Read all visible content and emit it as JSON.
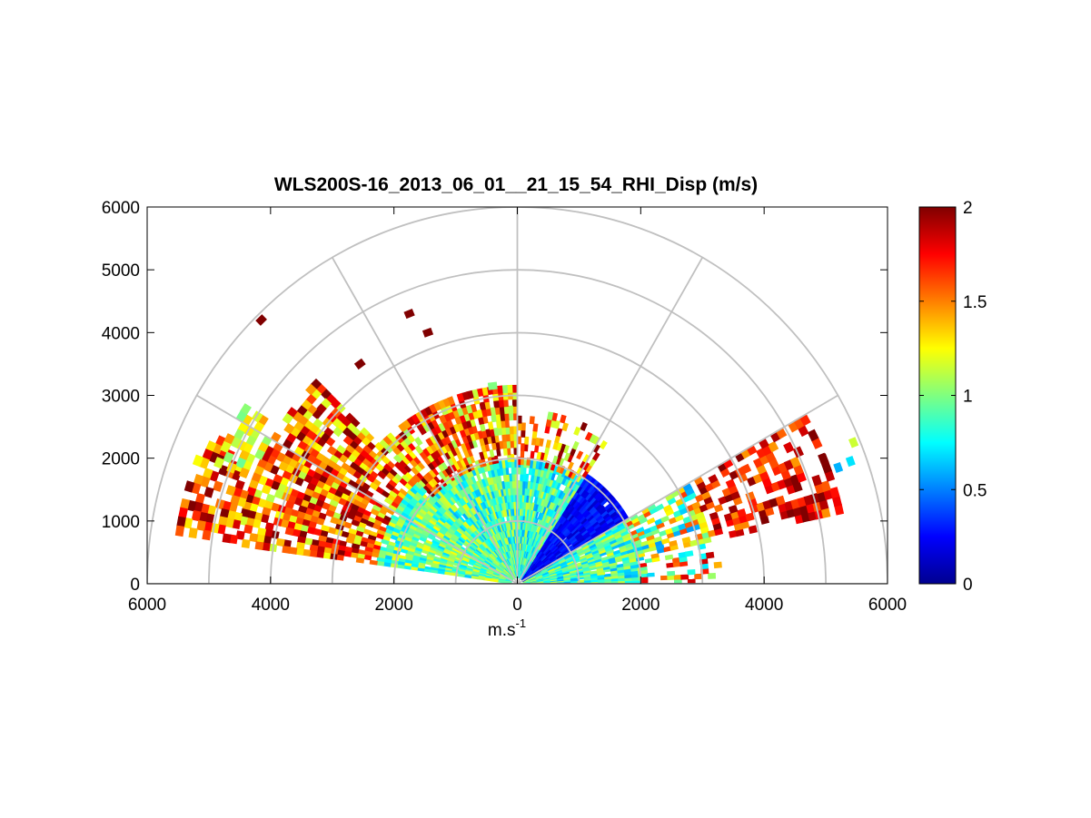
{
  "chart_data": {
    "type": "heatmap",
    "subtype": "polar-rhi",
    "title": "WLS200S-16_2013_06_01__21_15_54_RHI_Disp (m/s)",
    "xlabel": "m.s",
    "xlabel_sup": "-1",
    "ylabel": "",
    "xlim": [
      -6000,
      6000
    ],
    "ylim": [
      0,
      6000
    ],
    "x_ticks": [
      "6000",
      "4000",
      "2000",
      "0",
      "2000",
      "4000",
      "6000"
    ],
    "x_tick_values": [
      -6000,
      -4000,
      -2000,
      0,
      2000,
      4000,
      6000
    ],
    "y_ticks": [
      "0",
      "1000",
      "2000",
      "3000",
      "4000",
      "5000",
      "6000"
    ],
    "y_tick_values": [
      0,
      1000,
      2000,
      3000,
      4000,
      5000,
      6000
    ],
    "polar_grid": {
      "rings": [
        1000,
        2000,
        3000,
        4000,
        5000,
        6000
      ],
      "spokes_deg": [
        30,
        60,
        90,
        120,
        150
      ],
      "color": "#c0c0c0"
    },
    "colorbar": {
      "min": 0,
      "max": 2,
      "ticks": [
        "0",
        "0.5",
        "1",
        "1.5",
        "2"
      ],
      "tick_values": [
        0,
        0.5,
        1,
        1.5,
        2
      ],
      "colormap": "jet"
    },
    "colormap_stops": [
      "#00008f",
      "#0000ff",
      "#00ffff",
      "#ffff00",
      "#ff0000",
      "#800000"
    ],
    "grid": true,
    "legend": "none",
    "sectors": [
      {
        "az_deg": [
          0,
          12
        ],
        "r_range": [
          100,
          2000
        ],
        "value": 0.88,
        "spread": 0.3,
        "density": 0.97
      },
      {
        "az_deg": [
          0,
          12
        ],
        "r_range": [
          2000,
          3300
        ],
        "value": 1.3,
        "spread": 0.65,
        "density": 0.45
      },
      {
        "az_deg": [
          12,
          30
        ],
        "r_range": [
          100,
          2000
        ],
        "value": 0.9,
        "spread": 0.3,
        "density": 0.96
      },
      {
        "az_deg": [
          12,
          30
        ],
        "r_range": [
          2000,
          3200
        ],
        "value": 1.1,
        "spread": 0.55,
        "density": 0.7
      },
      {
        "az_deg": [
          12,
          30
        ],
        "r_range": [
          3200,
          5300
        ],
        "value": 1.75,
        "spread": 0.3,
        "density": 0.55
      },
      {
        "az_deg": [
          30,
          57
        ],
        "r_range": [
          100,
          2000
        ],
        "value": 0.25,
        "spread": 0.12,
        "density": 0.98
      },
      {
        "az_deg": [
          57,
          90
        ],
        "r_range": [
          100,
          1900
        ],
        "value": 0.85,
        "spread": 0.3,
        "density": 0.96
      },
      {
        "az_deg": [
          57,
          90
        ],
        "r_range": [
          1900,
          2700
        ],
        "value": 1.55,
        "spread": 0.5,
        "density": 0.4
      },
      {
        "az_deg": [
          90,
          135
        ],
        "r_range": [
          100,
          1950
        ],
        "value": 0.9,
        "spread": 0.3,
        "density": 0.96
      },
      {
        "az_deg": [
          90,
          135
        ],
        "r_range": [
          1950,
          3100
        ],
        "value": 1.55,
        "spread": 0.5,
        "density": 0.8
      },
      {
        "az_deg": [
          135,
          172
        ],
        "r_range": [
          100,
          2300
        ],
        "value": 0.95,
        "spread": 0.3,
        "density": 0.95
      },
      {
        "az_deg": [
          135,
          172
        ],
        "r_range": [
          2300,
          4600
        ],
        "value": 1.6,
        "spread": 0.5,
        "density": 0.75
      },
      {
        "az_deg": [
          154,
          172
        ],
        "r_range": [
          4600,
          5500
        ],
        "value": 1.65,
        "spread": 0.45,
        "density": 0.55
      },
      {
        "az_deg": [
          147,
          158
        ],
        "r_range": [
          4600,
          5200
        ],
        "value": 1.2,
        "spread": 0.25,
        "density": 0.55
      }
    ],
    "isolated_cells": [
      {
        "x": -4150,
        "y": 4200,
        "value": 2.0
      },
      {
        "x": -1750,
        "y": 4300,
        "value": 2.0
      },
      {
        "x": -1450,
        "y": 4000,
        "value": 2.0
      },
      {
        "x": -2550,
        "y": 3500,
        "value": 2.0
      },
      {
        "x": -400,
        "y": 3150,
        "value": 1.0
      },
      {
        "x": 5450,
        "y": 2250,
        "value": 1.15
      },
      {
        "x": 4950,
        "y": 2000,
        "value": 2.0
      },
      {
        "x": 5200,
        "y": 1850,
        "value": 0.6
      },
      {
        "x": 5400,
        "y": 1950,
        "value": 0.7
      }
    ]
  }
}
